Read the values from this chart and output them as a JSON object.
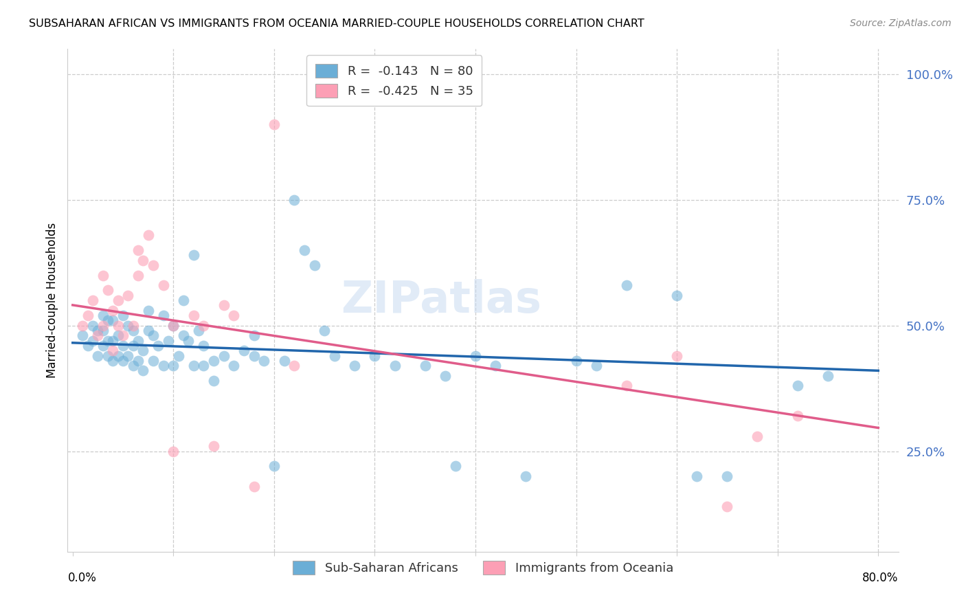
{
  "title": "SUBSAHARAN AFRICAN VS IMMIGRANTS FROM OCEANIA MARRIED-COUPLE HOUSEHOLDS CORRELATION CHART",
  "source": "Source: ZipAtlas.com",
  "ylabel": "Married-couple Households",
  "ytick_labels": [
    "100.0%",
    "75.0%",
    "50.0%",
    "25.0%"
  ],
  "ytick_values": [
    1.0,
    0.75,
    0.5,
    0.25
  ],
  "xlim": [
    0.0,
    0.8
  ],
  "ylim": [
    0.05,
    1.05
  ],
  "legend_label1": "R =  -0.143   N = 80",
  "legend_label2": "R =  -0.425   N = 35",
  "legend_sublabel1": "Sub-Saharan Africans",
  "legend_sublabel2": "Immigrants from Oceania",
  "R_blue": -0.143,
  "N_blue": 80,
  "R_pink": -0.425,
  "N_pink": 35,
  "blue_color": "#6baed6",
  "pink_color": "#fc9fb5",
  "blue_line_color": "#2166ac",
  "pink_line_color": "#e05c8a",
  "watermark": "ZIPatlas",
  "blue_x": [
    0.01,
    0.015,
    0.02,
    0.02,
    0.025,
    0.025,
    0.03,
    0.03,
    0.03,
    0.035,
    0.035,
    0.035,
    0.04,
    0.04,
    0.04,
    0.045,
    0.045,
    0.05,
    0.05,
    0.05,
    0.055,
    0.055,
    0.06,
    0.06,
    0.06,
    0.065,
    0.065,
    0.07,
    0.07,
    0.075,
    0.075,
    0.08,
    0.08,
    0.085,
    0.09,
    0.09,
    0.095,
    0.1,
    0.1,
    0.105,
    0.11,
    0.11,
    0.115,
    0.12,
    0.12,
    0.125,
    0.13,
    0.13,
    0.14,
    0.14,
    0.15,
    0.16,
    0.17,
    0.18,
    0.18,
    0.19,
    0.2,
    0.21,
    0.22,
    0.23,
    0.24,
    0.25,
    0.26,
    0.28,
    0.3,
    0.32,
    0.35,
    0.37,
    0.38,
    0.4,
    0.42,
    0.45,
    0.5,
    0.52,
    0.55,
    0.6,
    0.62,
    0.65,
    0.72,
    0.75
  ],
  "blue_y": [
    0.48,
    0.46,
    0.47,
    0.5,
    0.44,
    0.49,
    0.46,
    0.49,
    0.52,
    0.44,
    0.47,
    0.51,
    0.43,
    0.47,
    0.51,
    0.44,
    0.48,
    0.43,
    0.46,
    0.52,
    0.44,
    0.5,
    0.42,
    0.46,
    0.49,
    0.43,
    0.47,
    0.41,
    0.45,
    0.49,
    0.53,
    0.43,
    0.48,
    0.46,
    0.42,
    0.52,
    0.47,
    0.42,
    0.5,
    0.44,
    0.48,
    0.55,
    0.47,
    0.42,
    0.64,
    0.49,
    0.42,
    0.46,
    0.39,
    0.43,
    0.44,
    0.42,
    0.45,
    0.44,
    0.48,
    0.43,
    0.22,
    0.43,
    0.75,
    0.65,
    0.62,
    0.49,
    0.44,
    0.42,
    0.44,
    0.42,
    0.42,
    0.4,
    0.22,
    0.44,
    0.42,
    0.2,
    0.43,
    0.42,
    0.58,
    0.56,
    0.2,
    0.2,
    0.38,
    0.4
  ],
  "pink_x": [
    0.01,
    0.015,
    0.02,
    0.025,
    0.03,
    0.03,
    0.035,
    0.04,
    0.04,
    0.045,
    0.045,
    0.05,
    0.055,
    0.06,
    0.065,
    0.065,
    0.07,
    0.075,
    0.08,
    0.09,
    0.1,
    0.1,
    0.12,
    0.13,
    0.14,
    0.15,
    0.16,
    0.18,
    0.2,
    0.22,
    0.55,
    0.6,
    0.65,
    0.68,
    0.72
  ],
  "pink_y": [
    0.5,
    0.52,
    0.55,
    0.48,
    0.6,
    0.5,
    0.57,
    0.53,
    0.45,
    0.5,
    0.55,
    0.48,
    0.56,
    0.5,
    0.6,
    0.65,
    0.63,
    0.68,
    0.62,
    0.58,
    0.25,
    0.5,
    0.52,
    0.5,
    0.26,
    0.54,
    0.52,
    0.18,
    0.9,
    0.42,
    0.38,
    0.44,
    0.14,
    0.28,
    0.32
  ]
}
